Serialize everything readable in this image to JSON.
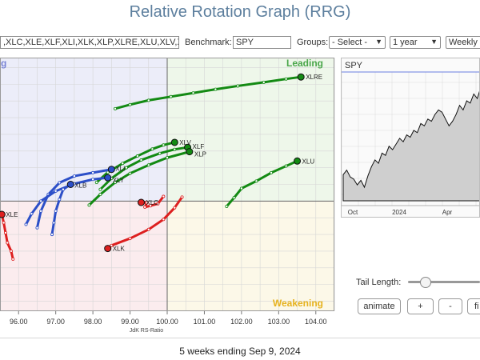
{
  "title": "Relative Rotation Graph (RRG)",
  "controls": {
    "symbols_value": ",XLC,XLE,XLF,XLI,XLK,XLP,XLRE,XLU,XLV,XL",
    "benchmark_label": "Benchmark:",
    "benchmark_value": "SPY",
    "groups_label": "Groups:",
    "groups_value": "- Select -",
    "period_value": "1 year",
    "frequency_value": "Weekly"
  },
  "quadrants": {
    "leading": "Leading",
    "weakening": "Weakening",
    "improving_partial": "g"
  },
  "colors": {
    "leading_bg": "#eef7ea",
    "weakening_bg": "#fcf8e8",
    "lagging_bg": "#fbecee",
    "improving_bg": "#ecedf9",
    "green": "#138a13",
    "blue": "#2c4fc8",
    "red": "#dd1f1f",
    "leading_text": "#4aa64a",
    "weakening_text": "#e6b21e",
    "improving_text": "#7a84d6",
    "benchmark_line": "#6a7fe0"
  },
  "chart_data": {
    "type": "scatter",
    "xlabel": "JdK RS-Ratio",
    "xlim": [
      95.5,
      104.5
    ],
    "ylim": [
      96.7,
      104.3
    ],
    "center": 100,
    "x_ticks": [
      96.0,
      97.0,
      98.0,
      99.0,
      100.0,
      101.0,
      102.0,
      103.0,
      104.0
    ],
    "tick_labels": [
      "96.00",
      "97.00",
      "98.00",
      "99.00",
      "100.00",
      "101.00",
      "102.00",
      "103.00",
      "104.00"
    ],
    "series": [
      {
        "name": "XLRE",
        "color": "green",
        "label_dx": 6,
        "label_dy": 3,
        "points": [
          [
            98.6,
            102.77
          ],
          [
            99.0,
            102.89
          ],
          [
            99.5,
            103.02
          ],
          [
            100.1,
            103.13
          ],
          [
            100.7,
            103.24
          ],
          [
            101.3,
            103.35
          ],
          [
            101.9,
            103.45
          ],
          [
            102.6,
            103.56
          ],
          [
            103.2,
            103.66
          ],
          [
            103.6,
            103.72
          ]
        ]
      },
      {
        "name": "XLV",
        "color": "green",
        "label_dx": 6,
        "label_dy": 3,
        "points": [
          [
            98.1,
            100.56
          ],
          [
            98.4,
            100.86
          ],
          [
            98.8,
            101.13
          ],
          [
            99.2,
            101.35
          ],
          [
            99.6,
            101.56
          ],
          [
            99.9,
            101.68
          ],
          [
            100.2,
            101.76
          ]
        ]
      },
      {
        "name": "XLF",
        "color": "green",
        "label_dx": 6,
        "label_dy": 2,
        "points": [
          [
            98.2,
            100.35
          ],
          [
            98.5,
            100.68
          ],
          [
            98.9,
            101.0
          ],
          [
            99.3,
            101.23
          ],
          [
            99.8,
            101.43
          ],
          [
            100.2,
            101.55
          ],
          [
            100.55,
            101.61
          ]
        ]
      },
      {
        "name": "XLP",
        "color": "green",
        "label_dx": 6,
        "label_dy": 6,
        "points": [
          [
            97.9,
            99.88
          ],
          [
            98.2,
            100.2
          ],
          [
            98.6,
            100.56
          ],
          [
            99.0,
            100.83
          ],
          [
            99.5,
            101.08
          ],
          [
            100.0,
            101.3
          ],
          [
            100.6,
            101.48
          ]
        ]
      },
      {
        "name": "XLU",
        "color": "green",
        "label_dx": 6,
        "label_dy": 3,
        "points": [
          [
            101.6,
            99.84
          ],
          [
            101.8,
            100.1
          ],
          [
            102.0,
            100.38
          ],
          [
            102.4,
            100.6
          ],
          [
            102.8,
            100.85
          ],
          [
            103.2,
            101.05
          ],
          [
            103.5,
            101.2
          ]
        ]
      },
      {
        "name": "XLI",
        "color": "blue",
        "label_dx": 5,
        "label_dy": 2,
        "points": [
          [
            96.5,
            99.2
          ],
          [
            96.6,
            99.7
          ],
          [
            96.8,
            100.2
          ],
          [
            97.1,
            100.55
          ],
          [
            97.5,
            100.75
          ],
          [
            98.0,
            100.85
          ],
          [
            98.5,
            100.95
          ]
        ]
      },
      {
        "name": "XLY",
        "color": "blue",
        "label_dx": 6,
        "label_dy": 6,
        "points": [
          [
            96.2,
            99.3
          ],
          [
            96.35,
            99.62
          ],
          [
            96.6,
            100.0
          ],
          [
            97.0,
            100.3
          ],
          [
            97.5,
            100.52
          ],
          [
            98.0,
            100.65
          ],
          [
            98.4,
            100.7
          ]
        ]
      },
      {
        "name": "XLB",
        "color": "blue",
        "label_dx": 5,
        "label_dy": 4,
        "points": [
          [
            96.9,
            99.0
          ],
          [
            96.95,
            99.35
          ],
          [
            97.0,
            99.7
          ],
          [
            97.1,
            100.05
          ],
          [
            97.2,
            100.35
          ],
          [
            97.4,
            100.5
          ]
        ]
      },
      {
        "name": "XLC",
        "color": "red",
        "label_dx": 6,
        "label_dy": 3,
        "points": [
          [
            99.9,
            100.14
          ],
          [
            99.75,
            99.92
          ],
          [
            99.55,
            99.86
          ],
          [
            99.4,
            99.82
          ],
          [
            99.45,
            99.95
          ],
          [
            99.3,
            99.96
          ]
        ]
      },
      {
        "name": "XLK",
        "color": "red",
        "label_dx": 6,
        "label_dy": 3,
        "points": [
          [
            100.4,
            100.12
          ],
          [
            100.2,
            99.8
          ],
          [
            99.9,
            99.45
          ],
          [
            99.5,
            99.15
          ],
          [
            99.0,
            98.88
          ],
          [
            98.5,
            98.67
          ],
          [
            98.4,
            98.58
          ]
        ]
      },
      {
        "name": "XLE",
        "color": "red",
        "label_dx": 5,
        "label_dy": 3,
        "points": [
          [
            95.85,
            98.26
          ],
          [
            95.8,
            98.5
          ],
          [
            95.7,
            98.75
          ],
          [
            95.65,
            99.05
          ],
          [
            95.6,
            99.35
          ],
          [
            95.55,
            99.6
          ]
        ]
      }
    ]
  },
  "spy_panel": {
    "symbol": "SPY",
    "x_labels": [
      "Oct",
      "2024",
      "Apr"
    ],
    "price_series": [
      0.23,
      0.27,
      0.21,
      0.19,
      0.14,
      0.18,
      0.12,
      0.22,
      0.3,
      0.36,
      0.33,
      0.42,
      0.4,
      0.48,
      0.45,
      0.5,
      0.55,
      0.52,
      0.58,
      0.56,
      0.62,
      0.6,
      0.68,
      0.66,
      0.72,
      0.7,
      0.76,
      0.8,
      0.78,
      0.72,
      0.66,
      0.7,
      0.76,
      0.84,
      0.8,
      0.88,
      0.86,
      0.94,
      0.9,
      1.0
    ]
  },
  "tail": {
    "label": "Tail Length:",
    "value": 5
  },
  "buttons": {
    "animate": "animate",
    "plus": "+",
    "minus": "-",
    "fit_partial": "fi"
  },
  "footer": "5 weeks ending Sep 9, 2024"
}
